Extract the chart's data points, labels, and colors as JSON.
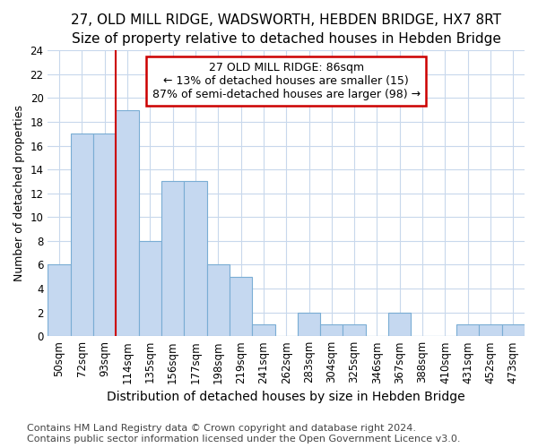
{
  "title": "27, OLD MILL RIDGE, WADSWORTH, HEBDEN BRIDGE, HX7 8RT",
  "subtitle": "Size of property relative to detached houses in Hebden Bridge",
  "xlabel": "Distribution of detached houses by size in Hebden Bridge",
  "ylabel": "Number of detached properties",
  "categories": [
    "50sqm",
    "72sqm",
    "93sqm",
    "114sqm",
    "135sqm",
    "156sqm",
    "177sqm",
    "198sqm",
    "219sqm",
    "241sqm",
    "262sqm",
    "283sqm",
    "304sqm",
    "325sqm",
    "346sqm",
    "367sqm",
    "388sqm",
    "410sqm",
    "431sqm",
    "452sqm",
    "473sqm"
  ],
  "values": [
    6,
    17,
    17,
    19,
    8,
    13,
    13,
    6,
    5,
    1,
    0,
    2,
    1,
    1,
    0,
    2,
    0,
    0,
    1,
    1,
    1
  ],
  "bar_color": "#c5d8f0",
  "bar_edge_color": "#7aadd4",
  "vline_x": 2.5,
  "vline_color": "#cc0000",
  "annotation_text": "27 OLD MILL RIDGE: 86sqm\n← 13% of detached houses are smaller (15)\n87% of semi-detached houses are larger (98) →",
  "annotation_box_color": "#ffffff",
  "annotation_box_edge": "#cc0000",
  "ylim": [
    0,
    24
  ],
  "yticks": [
    0,
    2,
    4,
    6,
    8,
    10,
    12,
    14,
    16,
    18,
    20,
    22,
    24
  ],
  "grid_color": "#c8d8ec",
  "footer1": "Contains HM Land Registry data © Crown copyright and database right 2024.",
  "footer2": "Contains public sector information licensed under the Open Government Licence v3.0.",
  "title_fontsize": 11,
  "xlabel_fontsize": 10,
  "ylabel_fontsize": 9,
  "tick_fontsize": 8.5,
  "footer_fontsize": 8,
  "annot_fontsize": 9
}
